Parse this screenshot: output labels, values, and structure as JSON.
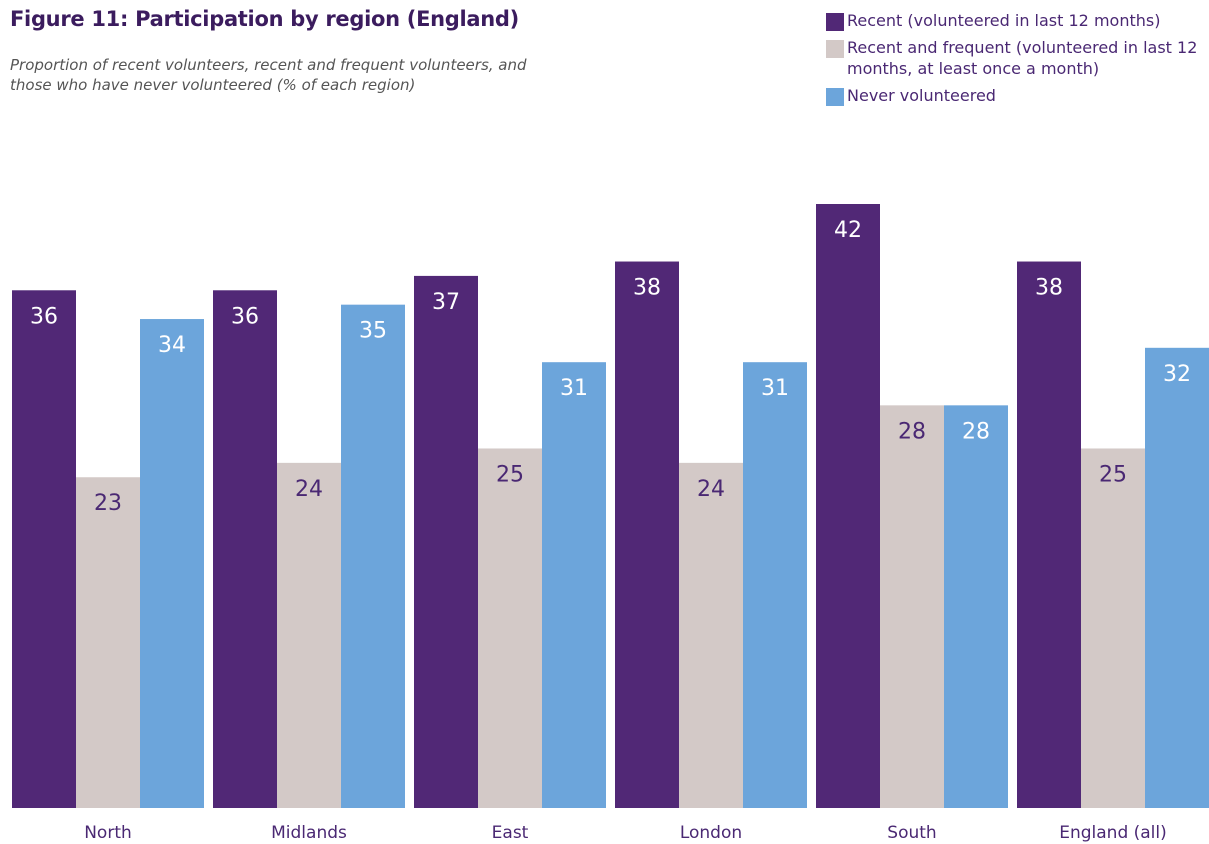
{
  "title": "Figure 11: Participation by region (England)",
  "subtitle": "Proportion of recent volunteers, recent and frequent volunteers, and those who have never volunteered (% of each region)",
  "colors": {
    "recent": "#512876",
    "frequent": "#d3c9c7",
    "never": "#6ca5db",
    "label_on_dark": "#ffffff",
    "label_on_light": "#4a2873",
    "axis_text": "#4a2873"
  },
  "legend": [
    {
      "label": "Recent (volunteered in last 12 months)",
      "color": "#512876"
    },
    {
      "label": "Recent and frequent (volunteered in last 12 months, at least once a month)",
      "color": "#d3c9c7"
    },
    {
      "label": "Never volunteered",
      "color": "#6ca5db"
    }
  ],
  "chart_data": {
    "type": "bar",
    "title": "Figure 11: Participation by region (England)",
    "subtitle": "Proportion of recent volunteers, recent and frequent volunteers, and those who have never volunteered (% of each region)",
    "categories": [
      "North",
      "Midlands",
      "East",
      "London",
      "South",
      "England (all)"
    ],
    "series": [
      {
        "name": "Recent (volunteered in last 12 months)",
        "values": [
          36,
          36,
          37,
          38,
          42,
          38
        ]
      },
      {
        "name": "Recent and frequent (volunteered in last 12 months, at least once a month)",
        "values": [
          23,
          24,
          25,
          24,
          28,
          25
        ]
      },
      {
        "name": "Never volunteered",
        "values": [
          34,
          35,
          31,
          31,
          28,
          32
        ]
      }
    ],
    "ylim": [
      0,
      42
    ],
    "grid": false,
    "legend_position": "top-right",
    "data_labels": true
  }
}
